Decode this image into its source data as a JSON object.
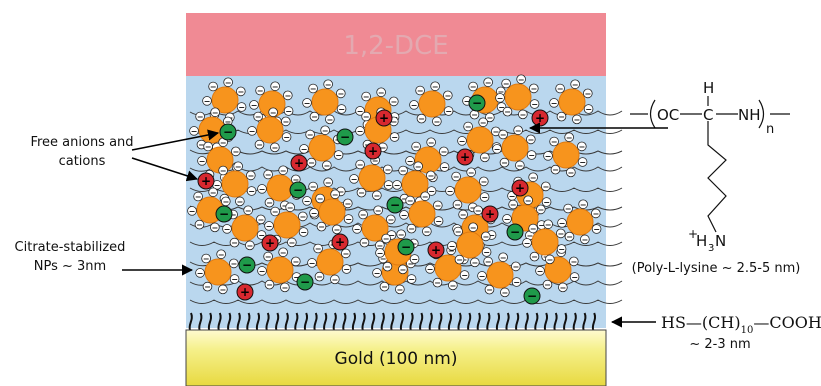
{
  "layers": {
    "solvent": {
      "label": "1,2-DCE",
      "color": "#f08a94",
      "text_color": "#e9a6ae"
    },
    "solution": {
      "color": "#bad7ee"
    },
    "gold": {
      "label": "Gold (100 nm)",
      "color": "#f5f08a"
    }
  },
  "annotations": {
    "free_ions": {
      "line1": "Free anions and",
      "line2": "cations"
    },
    "nps": {
      "line1": "Citrate-stabilized",
      "line2": "NPs ~ 3nm"
    },
    "polylysine": {
      "main": "(Poly-L-lysine ~ 2.5-5 nm)",
      "h": "H",
      "oc": "OC",
      "nh": "NH",
      "n": "n",
      "amine_plus": "+",
      "amine": "H",
      "amine_sub": "3",
      "amine_n": "N"
    },
    "thiol": {
      "hs": "HS",
      "ch": "(CH)",
      "sub": "10",
      "cooh": "COOH",
      "size": "~ 2-3 nm"
    }
  },
  "symbols": {
    "minus": "−",
    "plus": "+"
  },
  "colors": {
    "np_fill": "#f7941d",
    "np_stroke": "#e07a10",
    "anion_fill": "#1f9a4a",
    "cation_fill": "#d7282f",
    "chain": "#333333",
    "arrow": "#000000"
  }
}
